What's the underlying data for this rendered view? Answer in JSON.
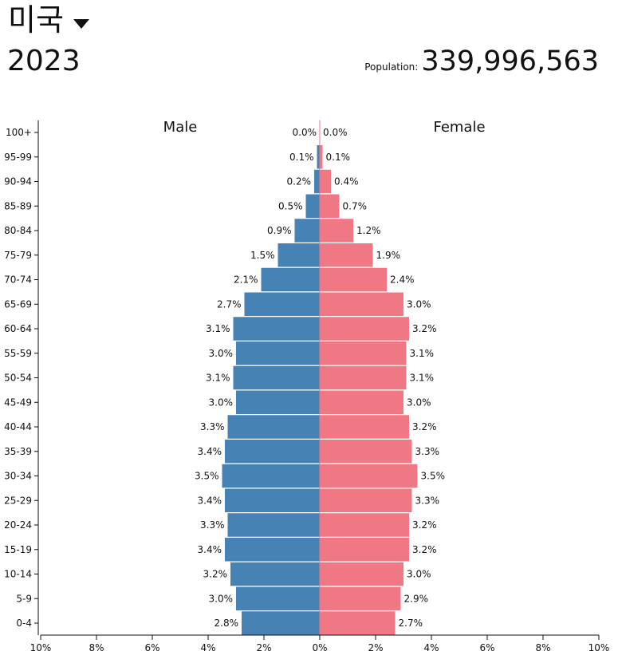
{
  "header": {
    "country": "미국",
    "year": "2023",
    "population_label": "Population:",
    "population_value": "339,996,563"
  },
  "colors": {
    "male": "#4682b4",
    "female": "#f07884",
    "axis": "#111111"
  },
  "icons": {
    "dropdown": "caret-down-icon"
  },
  "chart_data": {
    "type": "bar",
    "subtype": "population-pyramid",
    "series_labels": {
      "male": "Male",
      "female": "Female"
    },
    "age_groups": [
      "100+",
      "95-99",
      "90-94",
      "85-89",
      "80-84",
      "75-79",
      "70-74",
      "65-69",
      "60-64",
      "55-59",
      "50-54",
      "45-49",
      "40-44",
      "35-39",
      "30-34",
      "25-29",
      "20-24",
      "15-19",
      "10-14",
      "5-9",
      "0-4"
    ],
    "male": [
      0.0,
      0.1,
      0.2,
      0.5,
      0.9,
      1.5,
      2.1,
      2.7,
      3.1,
      3.0,
      3.1,
      3.0,
      3.3,
      3.4,
      3.5,
      3.4,
      3.3,
      3.4,
      3.2,
      3.0,
      2.8
    ],
    "female": [
      0.0,
      0.1,
      0.4,
      0.7,
      1.2,
      1.9,
      2.4,
      3.0,
      3.2,
      3.1,
      3.1,
      3.0,
      3.2,
      3.3,
      3.5,
      3.3,
      3.2,
      3.2,
      3.0,
      2.9,
      2.7
    ],
    "male_labels": [
      "0.0%",
      "0.1%",
      "0.2%",
      "0.5%",
      "0.9%",
      "1.5%",
      "2.1%",
      "2.7%",
      "3.1%",
      "3.0%",
      "3.1%",
      "3.0%",
      "3.3%",
      "3.4%",
      "3.5%",
      "3.4%",
      "3.3%",
      "3.4%",
      "3.2%",
      "3.0%",
      "2.8%"
    ],
    "female_labels": [
      "0.0%",
      "0.1%",
      "0.4%",
      "0.7%",
      "1.2%",
      "1.9%",
      "2.4%",
      "3.0%",
      "3.2%",
      "3.1%",
      "3.1%",
      "3.0%",
      "3.2%",
      "3.3%",
      "3.5%",
      "3.3%",
      "3.2%",
      "3.2%",
      "3.0%",
      "2.9%",
      "2.7%"
    ],
    "x_ticks": [
      10,
      8,
      6,
      4,
      2,
      0,
      2,
      4,
      6,
      8,
      10
    ],
    "x_tick_labels": [
      "10%",
      "8%",
      "6%",
      "4%",
      "2%",
      "0%",
      "2%",
      "4%",
      "6%",
      "8%",
      "10%"
    ],
    "xlim": [
      -10,
      10
    ],
    "unit": "percent of total population"
  }
}
